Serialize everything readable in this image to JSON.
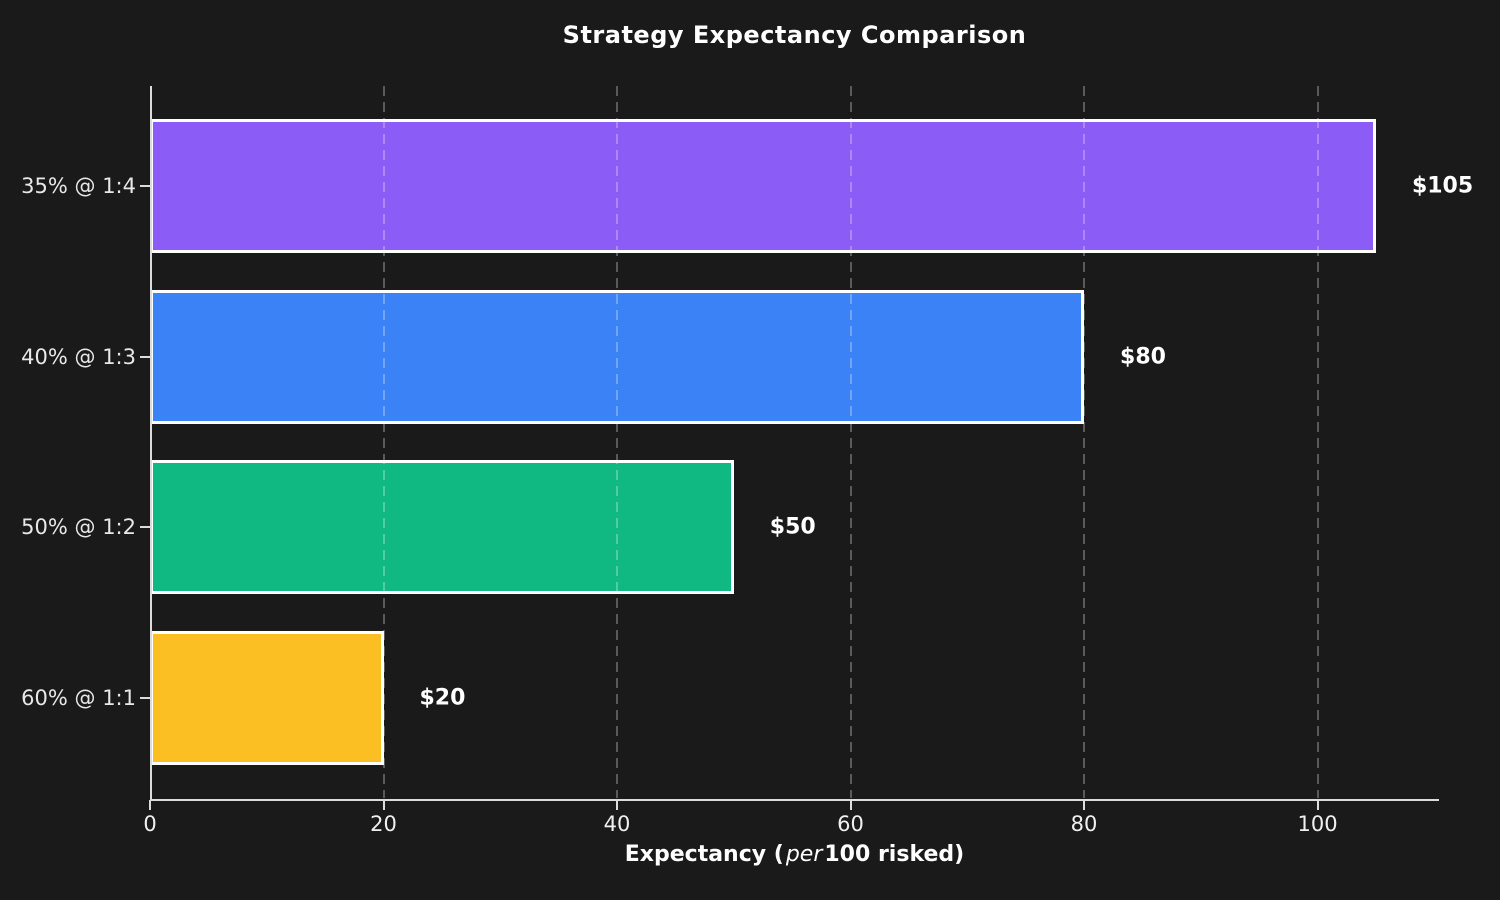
{
  "chart_data": {
    "type": "bar",
    "orientation": "horizontal",
    "title": "Strategy Expectancy Comparison",
    "xlabel_parts": {
      "prefix": "Expectancy (",
      "italic": "per",
      "suffix": "100 risked)"
    },
    "categories": [
      "35% @ 1:4",
      "40% @ 1:3",
      "50% @ 1:2",
      "60% @ 1:1"
    ],
    "values": [
      105,
      80,
      50,
      20
    ],
    "value_labels": [
      "$105",
      "$80",
      "$50",
      "$20"
    ],
    "bar_colors": [
      "#8B5CF6",
      "#3B82F6",
      "#10B981",
      "#FBBF24"
    ],
    "x_ticks": [
      0,
      20,
      40,
      60,
      80,
      100
    ],
    "xlim": [
      0,
      110.4
    ],
    "grid": "vertical dashed gridlines at x ticks, drawn over bars",
    "legend": "none",
    "colors": {
      "background": "#1A1A1A",
      "bar_edge": "#FFFFFF",
      "axis": "#DCDCDC",
      "text": "#FFFFFF",
      "gridline": "rgba(255,255,255,0.28)"
    }
  }
}
